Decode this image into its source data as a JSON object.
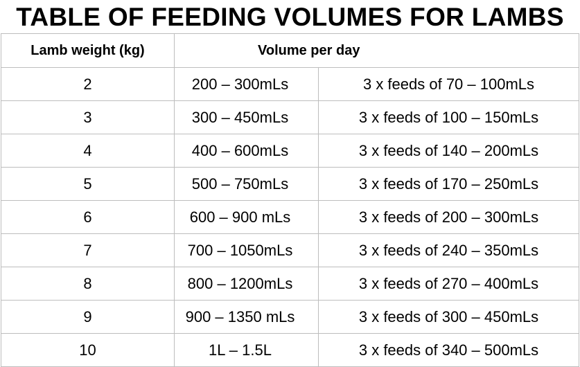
{
  "title": "TABLE OF FEEDING VOLUMES FOR LAMBS",
  "table": {
    "headers": {
      "weight": "Lamb weight (kg)",
      "volume": "Volume per day"
    },
    "rows": [
      {
        "weight": "2",
        "range": "200 – 300mLs",
        "feeds": "3 x feeds of 70 – 100mLs"
      },
      {
        "weight": "3",
        "range": "300 – 450mLs",
        "feeds": "3 x feeds of 100 – 150mLs"
      },
      {
        "weight": "4",
        "range": "400 – 600mLs",
        "feeds": "3 x feeds of 140 – 200mLs"
      },
      {
        "weight": "5",
        "range": "500 – 750mLs",
        "feeds": "3 x feeds of 170 – 250mLs"
      },
      {
        "weight": "6",
        "range": "600 – 900 mLs",
        "feeds": "3 x feeds of 200 – 300mLs"
      },
      {
        "weight": "7",
        "range": "700 – 1050mLs",
        "feeds": "3 x feeds of 240 – 350mLs"
      },
      {
        "weight": "8",
        "range": "800 – 1200mLs",
        "feeds": "3 x feeds of 270 – 400mLs"
      },
      {
        "weight": "9",
        "range": "900 – 1350 mLs",
        "feeds": "3 x feeds of 300 – 450mLs"
      },
      {
        "weight": "10",
        "range": "1L – 1.5L",
        "feeds": "3 x feeds of 340 – 500mLs"
      }
    ]
  }
}
